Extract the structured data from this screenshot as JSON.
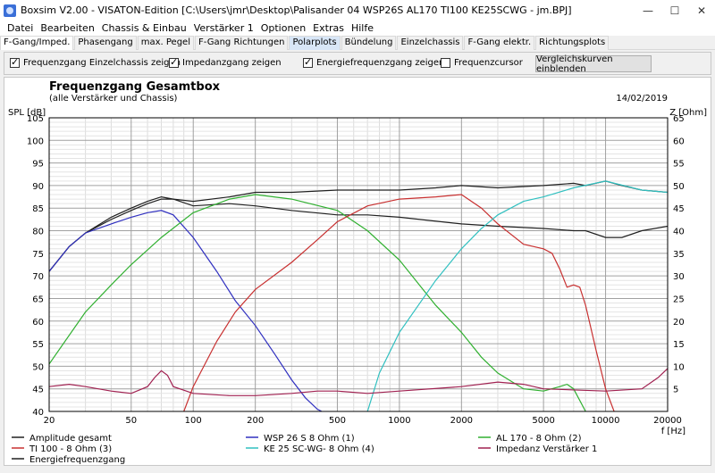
{
  "window": {
    "title": "Boxsim V2.00 - VISATON-Edition [C:\\Users\\jmr\\Desktop\\Palisander 04 WSP26S AL170 TI100 KE25SCWG - jm.BPJ]",
    "minimize": "—",
    "maximize": "☐",
    "close": "✕"
  },
  "menu": [
    "Datei",
    "Bearbeiten",
    "Chassis & Einbau",
    "Verstärker 1",
    "Optionen",
    "Extras",
    "Hilfe"
  ],
  "tabs": [
    "F-Gang/Imped.",
    "Phasengang",
    "max. Pegel",
    "F-Gang Richtungen",
    "Polarplots",
    "Bündelung",
    "Einzelchassis",
    "F-Gang elektr.",
    "Richtungsplots"
  ],
  "toolbar": {
    "chk1": "Frequenzgang Einzelchassis zeigen",
    "chk2": "Impedanzgang zeigen",
    "chk3": "Energiefrequenzgang zeigen",
    "chk4": "Frequenzcursor",
    "button": "Vergleichskurven einblenden"
  },
  "chart_data": {
    "type": "line",
    "title": "Frequenzgang Gesamtbox",
    "subtitle": "(alle Verstärker und Chassis)",
    "date": "14/02/2019",
    "ylabel_left": "SPL [dB]",
    "ylabel_right": "Z [Ohm]",
    "xlabel": "f [Hz]",
    "x_scale": "log",
    "xlim": [
      20,
      20000
    ],
    "ylim_left": [
      40,
      105
    ],
    "ylim_right": [
      0,
      65
    ],
    "x_ticks": [
      20,
      50,
      100,
      200,
      500,
      1000,
      2000,
      5000,
      10000,
      20000
    ],
    "y_ticks_left": [
      40,
      45,
      50,
      55,
      60,
      65,
      70,
      75,
      80,
      85,
      90,
      95,
      100,
      105
    ],
    "y_ticks_right": [
      5,
      10,
      15,
      20,
      25,
      30,
      35,
      40,
      45,
      50,
      55,
      60,
      65
    ],
    "series": [
      {
        "name": "Amplitude gesamt",
        "color": "#202020",
        "x": [
          20,
          25,
          30,
          40,
          50,
          60,
          70,
          80,
          100,
          150,
          200,
          300,
          500,
          700,
          1000,
          1500,
          2000,
          3000,
          5000,
          7000,
          8000,
          10000,
          12000,
          15000,
          20000
        ],
        "y": [
          71,
          76.5,
          79.5,
          82.5,
          84.5,
          86,
          87,
          87,
          86.5,
          87.5,
          88.5,
          88.5,
          89,
          89,
          89,
          89.5,
          90,
          89.5,
          90,
          90.5,
          90,
          91,
          90,
          89,
          88.5
        ]
      },
      {
        "name": "Energiefrequenzgang",
        "color": "#202020",
        "x": [
          20,
          25,
          30,
          40,
          50,
          60,
          70,
          80,
          100,
          150,
          200,
          300,
          500,
          700,
          1000,
          2000,
          3000,
          5000,
          7000,
          8000,
          10000,
          12000,
          15000,
          20000
        ],
        "y": [
          71,
          76.5,
          79.5,
          83,
          85,
          86.5,
          87.5,
          87,
          85.5,
          86,
          85.5,
          84.5,
          83.5,
          83.5,
          83,
          81.5,
          81,
          80.5,
          80,
          80,
          78.5,
          78.5,
          80,
          81
        ]
      },
      {
        "name": "WSP 26 S 8 Ohm (1)",
        "color": "#3030c0",
        "x": [
          20,
          25,
          30,
          40,
          50,
          60,
          70,
          80,
          100,
          130,
          160,
          200,
          250,
          300,
          350,
          400,
          420
        ],
        "y": [
          71,
          76.5,
          79.5,
          81.5,
          83,
          84,
          84.5,
          83.5,
          78.5,
          71,
          64.5,
          59,
          52.5,
          47,
          43,
          40.5,
          40
        ]
      },
      {
        "name": "AL 170 - 8 Ohm (2)",
        "color": "#30b030",
        "x": [
          20,
          30,
          40,
          50,
          70,
          100,
          150,
          200,
          300,
          500,
          700,
          1000,
          1500,
          2000,
          2500,
          3000,
          4000,
          5000,
          6000,
          6500,
          7000,
          8000
        ],
        "y": [
          50.5,
          62,
          68,
          72.5,
          78.5,
          84,
          87,
          88,
          87,
          84.5,
          80,
          73.5,
          63.5,
          57.5,
          52,
          48.5,
          45,
          44.5,
          45.5,
          46,
          45,
          40
        ]
      },
      {
        "name": "TI 100 - 8 Ohm (3)",
        "color": "#c83030",
        "x": [
          90,
          100,
          130,
          160,
          200,
          300,
          400,
          500,
          700,
          1000,
          1500,
          2000,
          2500,
          3000,
          4000,
          5000,
          5500,
          6000,
          6500,
          7000,
          7500,
          8000,
          9000,
          10000,
          11000,
          12000
        ],
        "y": [
          40,
          45.5,
          55.5,
          62,
          67,
          73,
          78,
          82,
          85.5,
          87,
          87.5,
          88,
          85,
          81.5,
          77,
          76,
          75,
          71.5,
          67.5,
          68,
          67.5,
          63.5,
          53.5,
          45,
          40,
          36
        ]
      },
      {
        "name": "KE 25 SC-WG- 8 Ohm    (4)",
        "color": "#30c0c0",
        "x": [
          700,
          800,
          1000,
          1500,
          2000,
          2500,
          3000,
          4000,
          5000,
          7000,
          10000,
          15000,
          20000
        ],
        "y": [
          40,
          48.5,
          57.5,
          69,
          76,
          80.5,
          83.5,
          86.5,
          87.5,
          89.5,
          91,
          89,
          88.5
        ]
      },
      {
        "name": "Impedanz Verstärker 1",
        "color": "#a02050",
        "axis": "right",
        "x": [
          20,
          25,
          30,
          40,
          50,
          60,
          65,
          70,
          75,
          80,
          100,
          150,
          200,
          300,
          400,
          500,
          700,
          1000,
          2000,
          3000,
          4000,
          5000,
          10000,
          15000,
          18000,
          20000
        ],
        "y": [
          5.5,
          6,
          5.5,
          4.5,
          4,
          5.5,
          7.5,
          9,
          8,
          5.5,
          4,
          3.5,
          3.5,
          4,
          4.5,
          4.5,
          4,
          4.5,
          5.5,
          6.5,
          6,
          5,
          4.5,
          5,
          7.5,
          9.5
        ]
      }
    ],
    "legend": [
      "Amplitude gesamt",
      "WSP 26 S 8 Ohm (1)",
      "AL 170 - 8 Ohm (2)",
      "TI 100 - 8 Ohm (3)",
      "KE 25 SC-WG- 8 Ohm    (4)",
      "Impedanz Verstärker 1",
      "Energiefrequenzgang"
    ],
    "legend_placement": "bottom",
    "grid": true
  }
}
